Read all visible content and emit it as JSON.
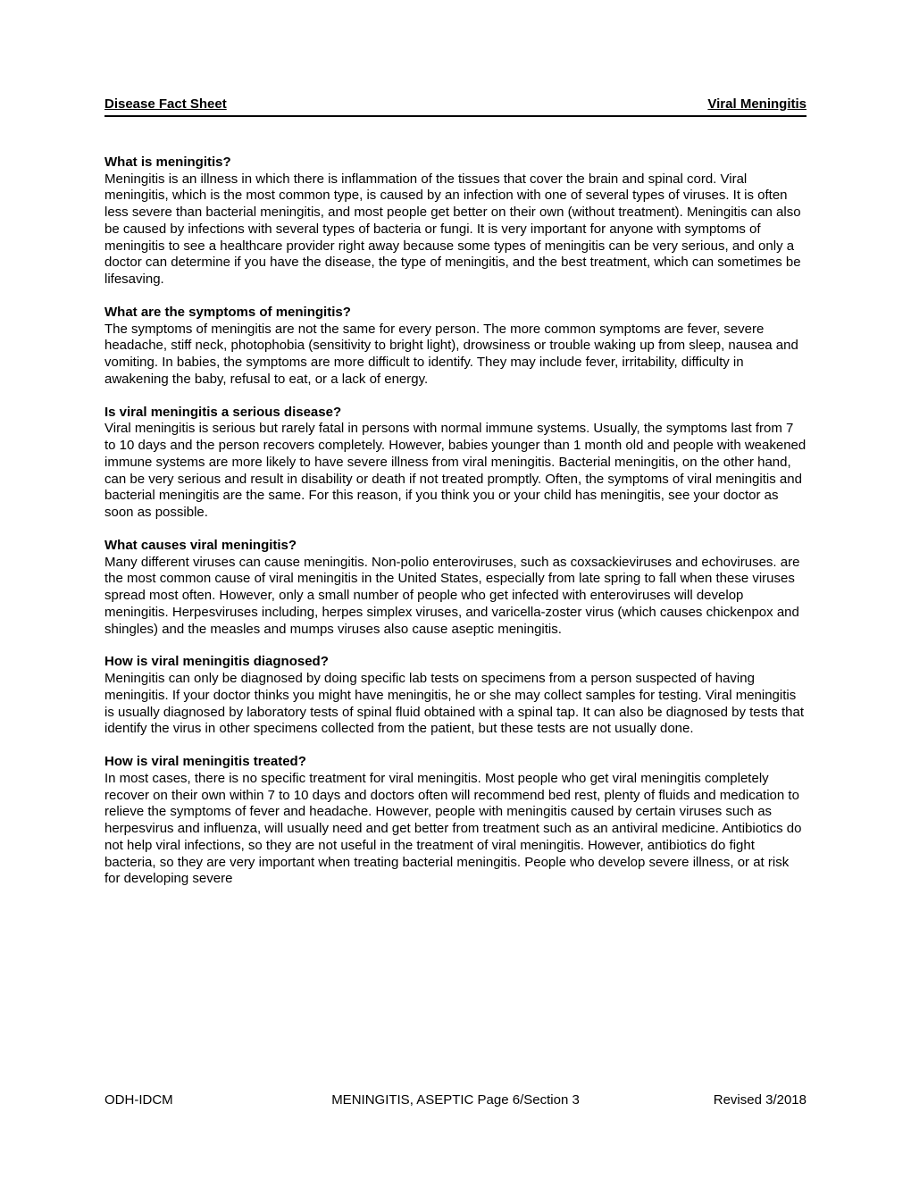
{
  "header": {
    "left": "Disease Fact Sheet",
    "right": "Viral Meningitis"
  },
  "sections": [
    {
      "q": "What is meningitis?",
      "a": "Meningitis is an illness in which there is inflammation of the tissues that cover the brain and spinal cord. Viral meningitis, which is the most common type, is caused by an infection with one of several types of viruses.  It is often less severe than bacterial meningitis, and most people get better on their own (without treatment).  Meningitis can also be caused by infections with several types of bacteria or fungi.  It is very important for anyone with symptoms of meningitis to see a healthcare provider right away because some types of meningitis can be very serious, and only a doctor can determine if you have the disease, the type of meningitis, and the best treatment, which can sometimes be lifesaving."
    },
    {
      "q": "What are the symptoms of meningitis?",
      "a": "The symptoms of meningitis are not the same for every person.  The more common symptoms are fever, severe headache, stiff neck, photophobia (sensitivity to bright light), drowsiness or trouble waking up from sleep, nausea and vomiting.  In babies, the symptoms are more difficult to identify.  They may include fever, irritability, difficulty in awakening the baby, refusal to eat, or a lack of energy."
    },
    {
      "q": "Is viral meningitis a serious disease?",
      "a": "Viral meningitis is serious but rarely fatal in persons with normal immune systems.  Usually, the symptoms last from 7 to 10 days and the person recovers completely.  However, babies younger than 1 month old and people with weakened immune systems are more likely to have severe illness from viral meningitis.  Bacterial meningitis, on the other hand, can be very serious and result in disability or death if not treated promptly.  Often, the symptoms of viral meningitis and bacterial meningitis are the same.  For this reason, if you think you or your child has meningitis, see your doctor as soon as possible."
    },
    {
      "q": "What causes viral meningitis?",
      "a": "Many different viruses can cause meningitis.  Non-polio enteroviruses, such as coxsackieviruses and echoviruses. are the most common cause of viral meningitis in the United States, especially from late spring to fall when these viruses spread most often.  However, only a small number of people who get infected with enteroviruses will develop meningitis.  Herpesviruses including, herpes simplex viruses, and varicella-zoster virus (which causes chickenpox and shingles) and the measles and mumps viruses also cause aseptic meningitis."
    },
    {
      "q": "How is viral meningitis diagnosed?",
      "a": "Meningitis can only be diagnosed by doing specific lab tests on specimens from a person suspected of having meningitis.  If your doctor thinks you might have meningitis, he or she may collect samples for testing.  Viral meningitis is usually diagnosed by laboratory tests of spinal fluid obtained with a spinal tap.  It can also be diagnosed by tests that identify the virus in other specimens collected from the patient, but these tests are not usually done."
    },
    {
      "q": "How is viral meningitis treated?",
      "a": "In most cases, there is no specific treatment for viral meningitis.  Most people who get viral meningitis completely recover on their own within 7 to 10 days and doctors often will recommend bed rest, plenty of fluids and medication to relieve the symptoms of fever and headache.  However, people with meningitis caused by certain viruses such as herpesvirus and influenza, will usually need and get better from treatment such as an antiviral medicine.  Antibiotics do not help viral infections, so they are not useful in the treatment of viral meningitis.  However, antibiotics do fight bacteria, so they are very important when treating bacterial meningitis.  People who develop severe illness, or at risk for developing severe"
    }
  ],
  "footer": {
    "left": "ODH-IDCM",
    "center": "MENINGITIS, ASEPTIC Page 6/Section 3",
    "right": "Revised 3/2018"
  }
}
